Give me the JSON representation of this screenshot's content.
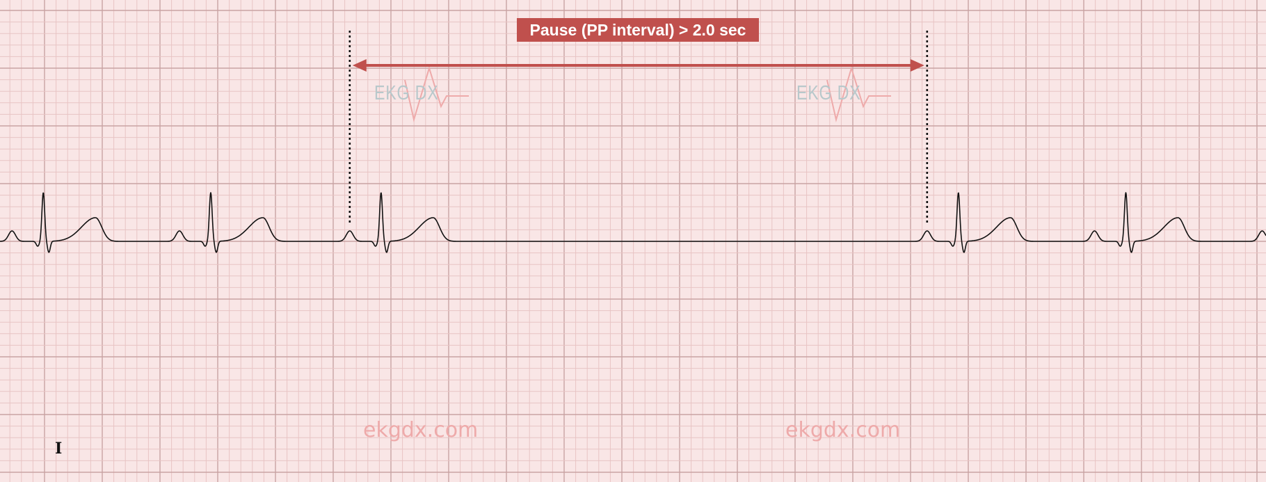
{
  "annotation": {
    "label": "Pause (PP interval) > 2.0 sec",
    "color": "#c0504d",
    "marker_style": "dotted",
    "pause_start_beat": 2,
    "pause_end_beat": 3
  },
  "lead": "I",
  "watermarks": {
    "logo": "EKG DX",
    "site": "ekgdx.com"
  },
  "ecg": {
    "paper_speed_mm_per_s": 25,
    "small_box_s": 0.04,
    "large_box_s": 0.2,
    "r_peak_times_s": [
      0.15,
      0.73,
      1.32,
      3.32,
      3.9
    ],
    "trace_color": "#111111",
    "grid_minor_color": "#e8c4c4",
    "grid_major_color": "#c9a3a3",
    "paper_color": "#f9e6e6"
  }
}
